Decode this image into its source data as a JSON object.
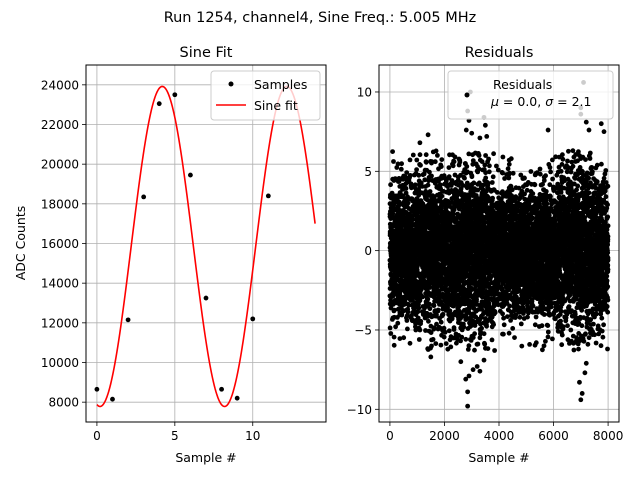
{
  "figure": {
    "suptitle": "Run 1254, channel4, Sine Freq.: 5.005 MHz"
  },
  "chart_data": [
    {
      "type": "line",
      "title": "Sine Fit",
      "xlabel": "Sample #",
      "ylabel": "ADC Counts",
      "xlim": [
        -0.7,
        14.7
      ],
      "ylim": [
        7000,
        25000
      ],
      "xticks": [
        0,
        5,
        10
      ],
      "xtick_labels": [
        "0",
        "5",
        "10"
      ],
      "yticks": [
        8000,
        10000,
        12000,
        14000,
        16000,
        18000,
        20000,
        22000,
        24000
      ],
      "ytick_labels": [
        "8000",
        "10000",
        "12000",
        "14000",
        "16000",
        "18000",
        "20000",
        "22000",
        "24000"
      ],
      "grid": true,
      "legend_position": "top-right",
      "series": [
        {
          "name": "Samples",
          "kind": "scatter",
          "color": "#000000",
          "x": [
            0,
            1,
            2,
            3,
            4,
            5,
            6,
            7,
            8,
            9,
            10,
            11
          ],
          "y": [
            8650,
            8150,
            12150,
            18350,
            23050,
            23500,
            19450,
            13250,
            8650,
            8200,
            12200,
            18400
          ]
        },
        {
          "name": "Sine fit",
          "kind": "line",
          "color": "#ff0000",
          "model": {
            "amplitude": 8070,
            "offset": 15850,
            "period": 7.99,
            "phase_deg": -99
          },
          "x_range": [
            0,
            14
          ]
        }
      ]
    },
    {
      "type": "scatter",
      "title": "Residuals",
      "xlabel": "Sample #",
      "ylabel": "",
      "xlim": [
        -400,
        8400
      ],
      "ylim": [
        -10.8,
        11.7
      ],
      "xticks": [
        0,
        2000,
        4000,
        6000,
        8000
      ],
      "xtick_labels": [
        "0",
        "2000",
        "4000",
        "6000",
        "8000"
      ],
      "yticks": [
        -10,
        -5,
        0,
        5,
        10
      ],
      "ytick_labels": [
        "−10",
        "−5",
        "0",
        "5",
        "10"
      ],
      "grid": true,
      "legend_position": "top-right",
      "series": [
        {
          "name": "Residuals",
          "name_line2": "μ = 0.0, σ = 2.1",
          "mu_symbol": "μ",
          "mu_value": "0.0",
          "sigma_symbol": "σ",
          "sigma_value": "2.1",
          "color": "#000000",
          "n_points": 8000,
          "mean": 0.0,
          "std": 2.1,
          "x_range": [
            0,
            7999
          ],
          "band_edges_x": [
            0,
            1000,
            1500,
            2000,
            2500,
            3000,
            3500,
            4000,
            5000,
            5500,
            6000,
            6500,
            7000,
            7500,
            8000
          ],
          "band_std": [
            2.1,
            2.1,
            2.2,
            2.4,
            2.5,
            2.6,
            2.4,
            2.0,
            1.9,
            2.0,
            2.0,
            2.4,
            2.6,
            2.3,
            2.1
          ],
          "outliers": [
            {
              "x": 2850,
              "y": -9.8
            },
            {
              "x": 2850,
              "y": -8.9
            },
            {
              "x": 2780,
              "y": -8.1
            },
            {
              "x": 2900,
              "y": -7.9
            },
            {
              "x": 3300,
              "y": -7.6
            },
            {
              "x": 3050,
              "y": -7.5
            },
            {
              "x": 2600,
              "y": -7.0
            },
            {
              "x": 3450,
              "y": -6.9
            },
            {
              "x": 3200,
              "y": -7.3
            },
            {
              "x": 5650,
              "y": -6.0
            },
            {
              "x": 7000,
              "y": -9.4
            },
            {
              "x": 7050,
              "y": -9.0
            },
            {
              "x": 6950,
              "y": -8.3
            },
            {
              "x": 7150,
              "y": -7.7
            },
            {
              "x": 7200,
              "y": -7.1
            },
            {
              "x": 1500,
              "y": -6.7
            },
            {
              "x": 2950,
              "y": 10.0
            },
            {
              "x": 2850,
              "y": 8.8
            },
            {
              "x": 2900,
              "y": 8.2
            },
            {
              "x": 2800,
              "y": 7.6
            },
            {
              "x": 3000,
              "y": 7.4
            },
            {
              "x": 3450,
              "y": 8.4
            },
            {
              "x": 3500,
              "y": 7.9
            },
            {
              "x": 3550,
              "y": 7.2
            },
            {
              "x": 3300,
              "y": 7.1
            },
            {
              "x": 5800,
              "y": 7.6
            },
            {
              "x": 7100,
              "y": 10.6
            },
            {
              "x": 7000,
              "y": 9.0
            },
            {
              "x": 7000,
              "y": 8.6
            },
            {
              "x": 7200,
              "y": 8.1
            },
            {
              "x": 7300,
              "y": 7.6
            },
            {
              "x": 7750,
              "y": 8.0
            },
            {
              "x": 7850,
              "y": 7.5
            },
            {
              "x": 1400,
              "y": 7.3
            },
            {
              "x": 1100,
              "y": 6.8
            }
          ]
        }
      ]
    }
  ]
}
